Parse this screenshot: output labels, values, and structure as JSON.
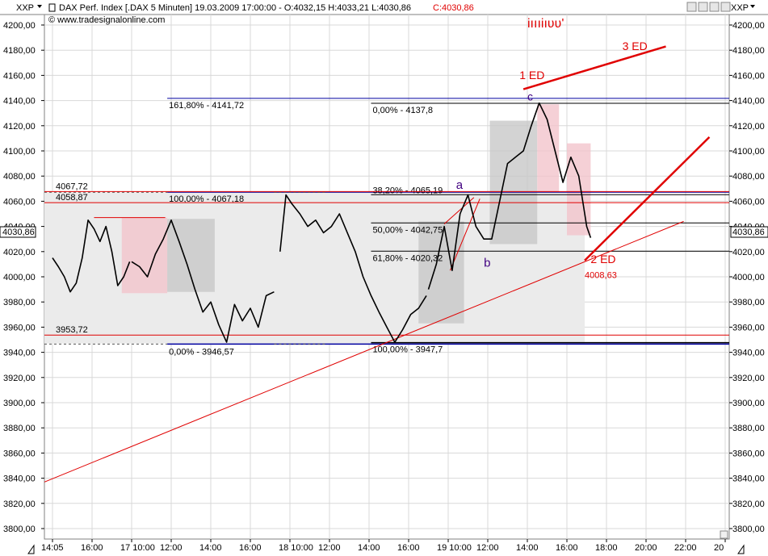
{
  "header": {
    "left_badge": "XXP",
    "right_badge": "XXP",
    "title_line": "DAX Perf. Index [.DAX  5 Minuten] 19.03.2009 17:00:00 - O:4032,15 H:4033,21 L:4030,86",
    "close_text": "C:4030,86",
    "copyright": "© www.tradesignalonline.com"
  },
  "price_badge": {
    "left": "4030,86",
    "right": "4030,86"
  },
  "chart_data": {
    "type": "line",
    "title": "DAX Perf. Index [.DAX  5 Minuten]",
    "ylim": [
      3790,
      4210
    ],
    "y_ticks": [
      "4200,00",
      "4180,00",
      "4160,00",
      "4140,00",
      "4120,00",
      "4100,00",
      "4080,00",
      "4060,00",
      "4040,00",
      "4020,00",
      "4000,00",
      "3980,00",
      "3960,00",
      "3940,00",
      "3920,00",
      "3900,00",
      "3880,00",
      "3860,00",
      "3840,00",
      "3820,00",
      "3800,00"
    ],
    "y_tick_values": [
      4200,
      4180,
      4160,
      4140,
      4120,
      4100,
      4080,
      4060,
      4040,
      4020,
      4000,
      3980,
      3960,
      3940,
      3920,
      3900,
      3880,
      3860,
      3840,
      3820,
      3800
    ],
    "x_ticks": [
      "14:05",
      "16:00",
      "17  10:00",
      "12:00",
      "14:00",
      "16:00",
      "18  10:00",
      "12:00",
      "14:00",
      "16:00",
      "19  10:00",
      "12:00",
      "14:00",
      "16:00",
      "18:00",
      "20:00",
      "22:00",
      "20"
    ],
    "x_tick_pos": [
      0,
      2,
      4,
      6,
      8,
      10,
      12,
      14,
      16,
      18,
      20,
      22,
      24,
      26,
      28,
      30,
      32,
      34
    ],
    "xlim": [
      0,
      35.2
    ],
    "grid": true,
    "segments": [
      {
        "name": "day-16",
        "x": [
          0,
          0.3,
          0.6,
          0.9,
          1.2,
          1.5,
          1.8,
          2.1,
          2.4,
          2.7,
          3.0,
          3.3,
          3.6,
          3.9
        ],
        "y": [
          4015,
          4008,
          4000,
          3988,
          3995,
          4015,
          4045,
          4038,
          4028,
          4040,
          4020,
          3993,
          4000,
          4012
        ]
      },
      {
        "name": "day-17",
        "x": [
          4.0,
          4.4,
          4.8,
          5.2,
          5.6,
          6.0,
          6.4,
          6.8,
          7.2,
          7.6,
          8.0,
          8.4,
          8.8,
          9.2,
          9.6,
          10.0,
          10.4,
          10.8,
          11.2
        ],
        "y": [
          4012,
          4008,
          4000,
          4018,
          4030,
          4045,
          4028,
          4010,
          3990,
          3972,
          3980,
          3962,
          3948,
          3978,
          3965,
          3975,
          3960,
          3985,
          3988
        ]
      },
      {
        "name": "day-18",
        "x": [
          11.5,
          11.8,
          12.1,
          12.5,
          12.9,
          13.3,
          13.7,
          14.1,
          14.5,
          14.9,
          15.3,
          15.7,
          16.1,
          16.5,
          16.9,
          17.3,
          17.7,
          18.1,
          18.5,
          18.9
        ],
        "y": [
          4020,
          4065,
          4058,
          4050,
          4040,
          4045,
          4035,
          4040,
          4050,
          4035,
          4020,
          4000,
          3985,
          3972,
          3960,
          3948,
          3958,
          3970,
          3975,
          3985
        ]
      },
      {
        "name": "day-19",
        "x": [
          19.0,
          19.4,
          19.8,
          20.2,
          20.6,
          21.0,
          21.4,
          21.8,
          22.2,
          22.6,
          23.0,
          23.4,
          23.8,
          24.2,
          24.6,
          25.0,
          25.4,
          25.8,
          26.2,
          26.6,
          27.0,
          27.2
        ],
        "y": [
          3990,
          4010,
          4040,
          4005,
          4050,
          4065,
          4040,
          4030,
          4030,
          4060,
          4090,
          4095,
          4100,
          4120,
          4138,
          4125,
          4100,
          4075,
          4095,
          4080,
          4040,
          4031
        ]
      }
    ],
    "fib_levels": [
      {
        "label": "161,80% - 4141,72",
        "value": 4141.72
      },
      {
        "label": "100,00% - 4067,18",
        "value": 4067.18
      },
      {
        "label": "0,00% - 3946,57",
        "value": 3946.57
      },
      {
        "label": "0,00% - 4137,8",
        "value": 4137.8
      },
      {
        "label": "38,20% - 4065,19",
        "value": 4065.19
      },
      {
        "label": "50,00% - 4042,75",
        "value": 4042.75
      },
      {
        "label": "61,80% - 4020,32",
        "value": 4020.32
      },
      {
        "label": "100,00% - 3947,7",
        "value": 3947.7
      }
    ],
    "red_levels": [
      {
        "label": "4067,72",
        "value": 4067.72
      },
      {
        "label": "4058,87",
        "value": 4058.87
      },
      {
        "label": "3953,72",
        "value": 3953.72
      }
    ],
    "annotations": {
      "a": "a",
      "b": "b",
      "c": "c",
      "ed1": "1 ED",
      "ed2": "2 ED",
      "ed3": "3 ED",
      "low_value": "4008,63",
      "scribble": "iıııiıʋʋ'"
    },
    "colors": {
      "up": "#000000",
      "red": "#e00000",
      "blue": "#0000a0",
      "gray_box": "#c8c8c8",
      "pink_box": "#f2c4cc",
      "grid": "#d8d8d8"
    }
  }
}
